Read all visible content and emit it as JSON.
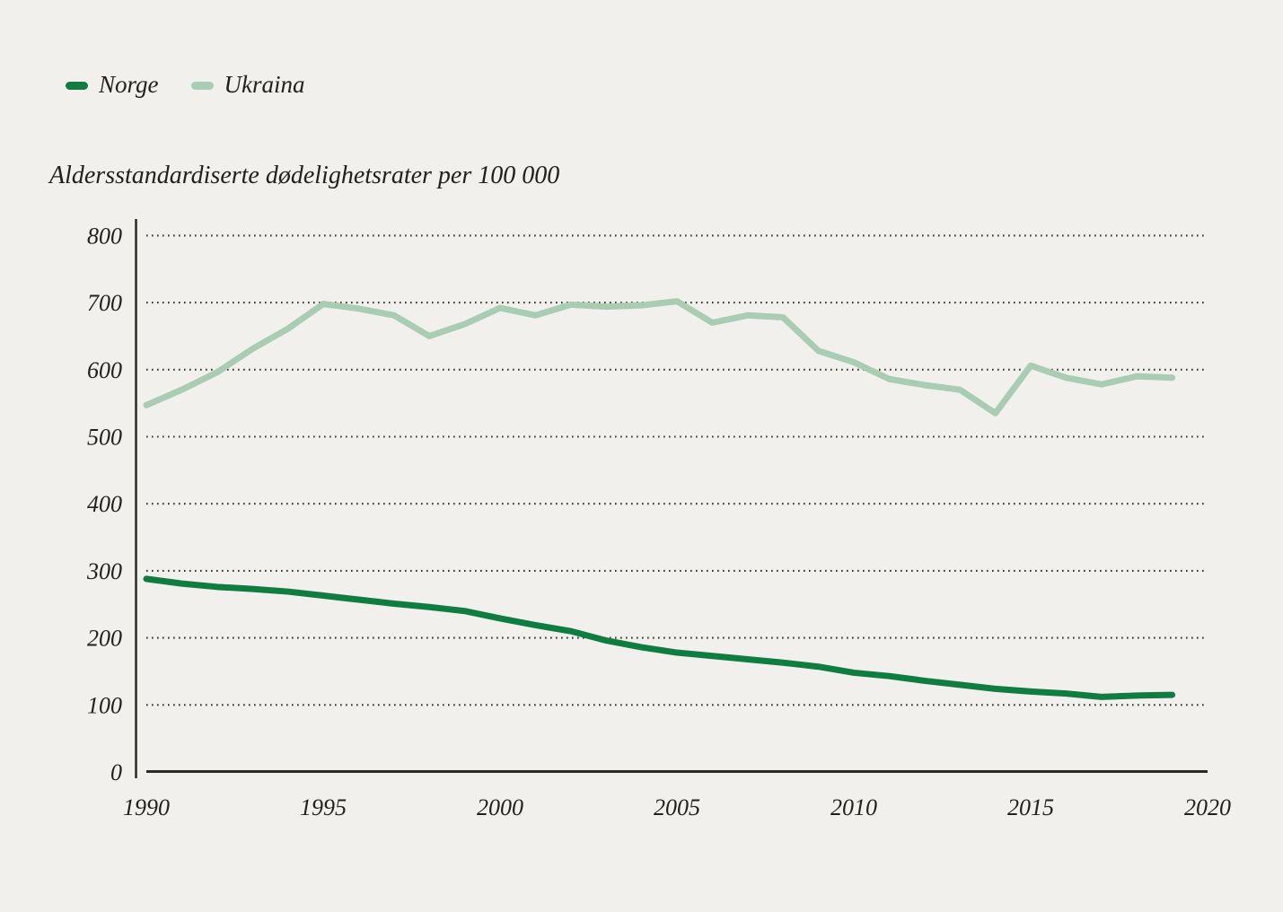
{
  "window": {
    "background": "#f2f0ed",
    "text_color": "#21201c",
    "axis_color": "#2b2a25",
    "grid_dot_color": "#34322d"
  },
  "legend": {
    "position": "top-left",
    "items": [
      {
        "label": "Norge",
        "color": "#0f7c40"
      },
      {
        "label": "Ukraina",
        "color": "#a9cdb2"
      }
    ]
  },
  "chart_data": {
    "type": "line",
    "title": "Aldersstandardiserte dødelighetsrater per 100 000",
    "xlabel": "",
    "ylabel": "Aldersstandardiserte dødelighetsrater per 100 000",
    "x": [
      1990,
      1991,
      1992,
      1993,
      1994,
      1995,
      1996,
      1997,
      1998,
      1999,
      2000,
      2001,
      2002,
      2003,
      2004,
      2005,
      2006,
      2007,
      2008,
      2009,
      2010,
      2011,
      2012,
      2013,
      2014,
      2015,
      2016,
      2017,
      2018,
      2019
    ],
    "series": [
      {
        "name": "Norge",
        "color": "#0f7c40",
        "values": [
          288,
          281,
          276,
          273,
          269,
          263,
          257,
          251,
          246,
          240,
          229,
          219,
          210,
          196,
          186,
          178,
          173,
          168,
          163,
          157,
          148,
          143,
          136,
          130,
          124,
          120,
          117,
          112,
          114,
          115
        ]
      },
      {
        "name": "Ukraina",
        "color": "#a9cdb2",
        "values": [
          547,
          570,
          596,
          631,
          661,
          698,
          691,
          681,
          650,
          668,
          692,
          681,
          697,
          694,
          696,
          702,
          670,
          681,
          678,
          628,
          611,
          586,
          577,
          570,
          535,
          606,
          588,
          578,
          590,
          588
        ]
      }
    ],
    "xticks": [
      1990,
      1995,
      2000,
      2005,
      2010,
      2015,
      2020
    ],
    "yticks": [
      0,
      100,
      200,
      300,
      400,
      500,
      600,
      700,
      800
    ],
    "xlim": [
      1990,
      2020
    ],
    "ylim": [
      0,
      800
    ],
    "grid": "dotted-horizontal",
    "legend_position": "top-left"
  }
}
